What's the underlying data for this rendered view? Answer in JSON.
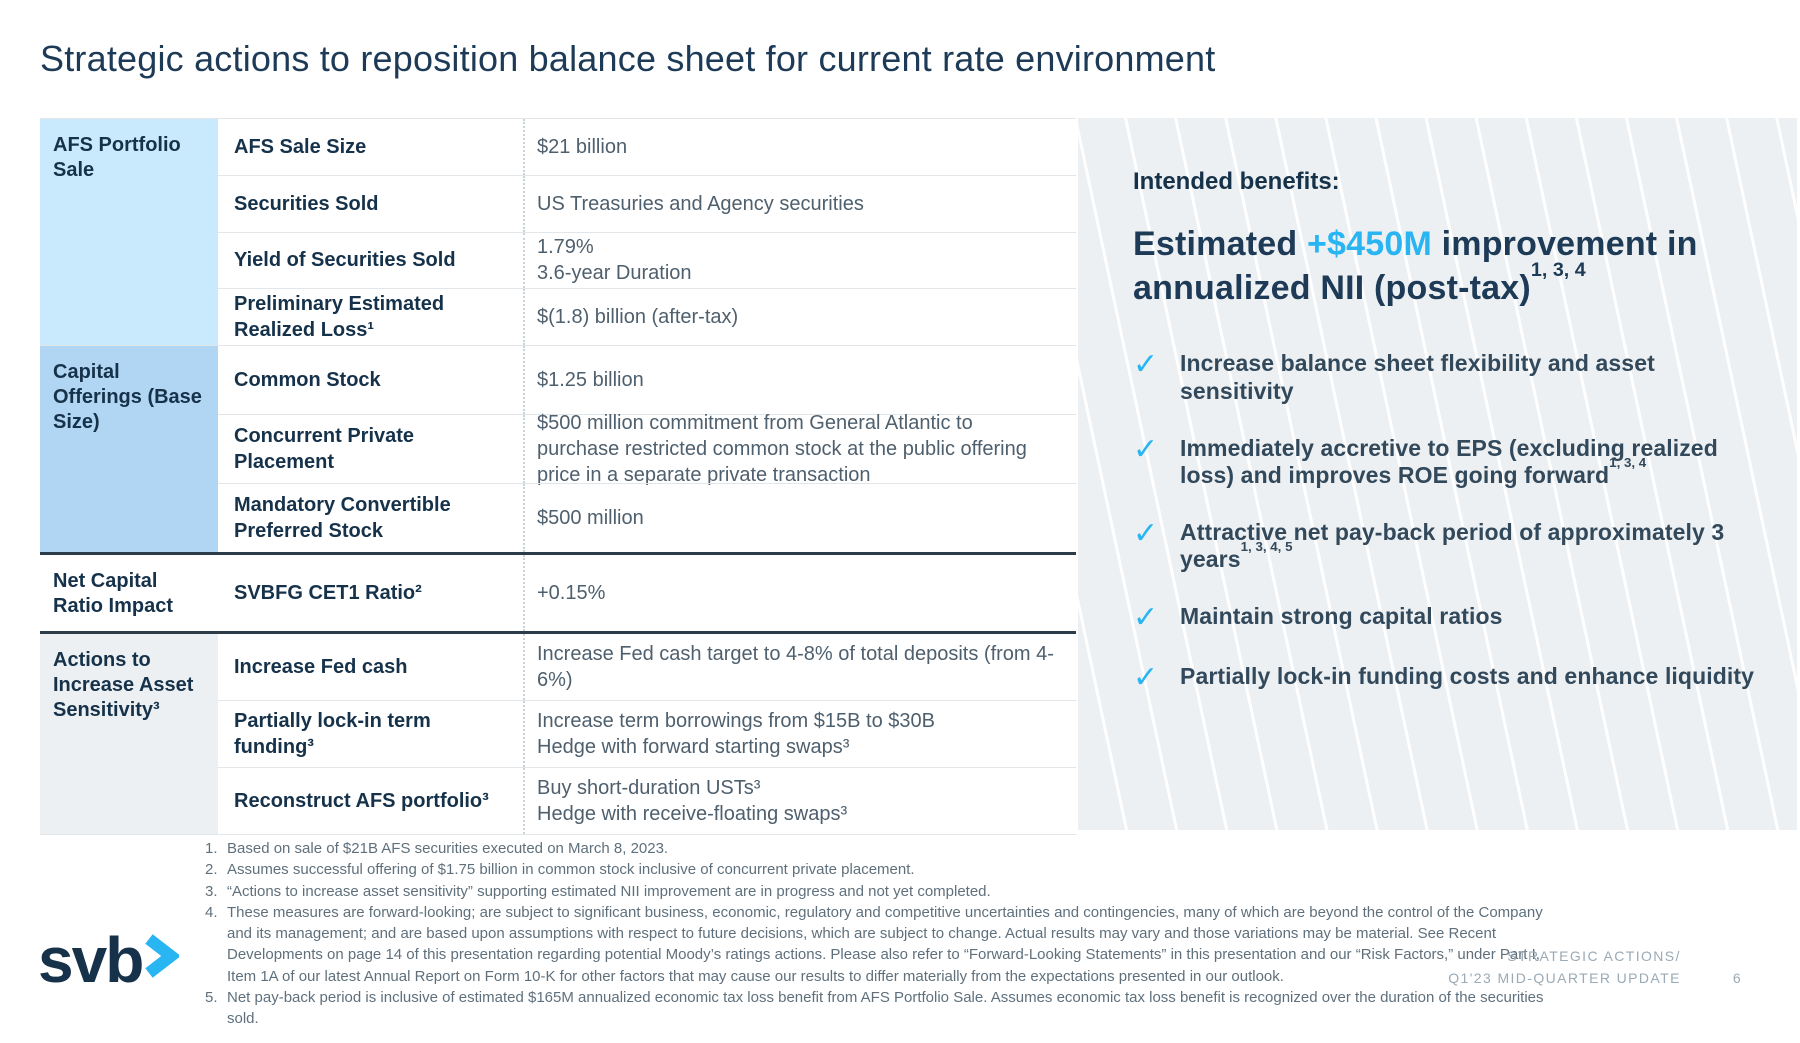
{
  "title": "Strategic actions to reposition balance sheet for current rate environment",
  "table": {
    "sections": [
      {
        "label": "AFS Portfolio Sale",
        "bg": "#c9eafc",
        "rows": [
          {
            "attr": "AFS Sale Size",
            "value": [
              "$21 billion"
            ]
          },
          {
            "attr": "Securities Sold",
            "value": [
              "US Treasuries and Agency securities"
            ]
          },
          {
            "attr": "Yield of Securities Sold",
            "value": [
              "1.79%",
              "3.6-year Duration"
            ]
          },
          {
            "attr": "Preliminary Estimated Realized Loss¹",
            "value": [
              "$(1.8) billion (after-tax)"
            ]
          }
        ]
      },
      {
        "label": "Capital Offerings (Base Size)",
        "bg": "#b1d6f4",
        "rows": [
          {
            "attr": "Common Stock",
            "value": [
              "$1.25 billion"
            ]
          },
          {
            "attr": "Concurrent Private Placement",
            "value": [
              "$500 million commitment from General Atlantic to purchase restricted common stock at the public offering price in a separate private transaction"
            ]
          },
          {
            "attr": "Mandatory Convertible Preferred Stock",
            "value": [
              "$500 million"
            ]
          }
        ]
      },
      {
        "label": "Net Capital Ratio Impact",
        "bg": "#ffffff",
        "rows": [
          {
            "attr": "SVBFG CET1 Ratio²",
            "value": [
              "+0.15%"
            ]
          }
        ]
      },
      {
        "label": "Actions to Increase Asset Sensitivity³",
        "bg": "#edf0f2",
        "rows": [
          {
            "attr": "Increase Fed cash",
            "value": [
              "Increase Fed cash target to 4-8% of total deposits (from 4-6%)"
            ]
          },
          {
            "attr": "Partially lock-in term funding³",
            "value": [
              "Increase term borrowings from $15B to $30B",
              "Hedge with forward starting swaps³"
            ]
          },
          {
            "attr": "Reconstruct AFS portfolio³",
            "value": [
              "Buy short-duration USTs³",
              "Hedge with receive-floating swaps³"
            ]
          }
        ]
      }
    ]
  },
  "benefits": {
    "intro": "Intended benefits:",
    "headline": {
      "pre": "Estimated",
      "highlight": "+$450M",
      "post": "improvement in annualized NII (post-tax)",
      "sup": "1, 3, 4"
    },
    "check_icon": "✓",
    "items": [
      {
        "text": "Increase balance sheet flexibility and asset sensitivity",
        "sup": ""
      },
      {
        "text": "Immediately accretive to EPS (excluding realized loss) and improves ROE going forward",
        "sup": "1, 3, 4"
      },
      {
        "text": "Attractive net pay-back period of approximately 3 years",
        "sup": "1, 3, 4, 5"
      },
      {
        "text": "Maintain strong capital ratios",
        "sup": ""
      },
      {
        "text": "Partially lock-in funding costs and enhance liquidity",
        "sup": ""
      }
    ]
  },
  "footnotes": [
    {
      "num": "1.",
      "text": "Based on sale of $21B AFS securities executed on March 8, 2023."
    },
    {
      "num": "2.",
      "text": "Assumes successful offering of $1.75 billion in common stock inclusive of concurrent private placement."
    },
    {
      "num": "3.",
      "text": "“Actions to increase asset sensitivity” supporting estimated NII improvement are in progress and not yet completed."
    },
    {
      "num": "4.",
      "text": "These measures are forward-looking; are subject to significant business, economic, regulatory and competitive uncertainties and contingencies, many of which are beyond the control of the Company and its management; and are based upon assumptions with respect to future decisions, which are subject to change. Actual results may vary and those variations may be material. See Recent Developments on page 14 of this presentation regarding potential Moody’s ratings actions.  Please also refer to “Forward-Looking Statements” in this presentation and our “Risk Factors,” under Part I, Item 1A of our latest Annual Report on Form 10-K for other factors that may cause our results to differ materially from the expectations presented in our outlook."
    },
    {
      "num": "5.",
      "text": "Net pay-back period is inclusive of estimated $165M annualized economic tax loss benefit from AFS Portfolio Sale.  Assumes economic tax loss benefit is recognized over the duration of the securities sold."
    }
  ],
  "footer": {
    "logo_text": "svb",
    "line1": "STRATEGIC ACTIONS/",
    "line2": "Q1'23 MID-QUARTER UPDATE",
    "page": "6"
  },
  "colors": {
    "accent": "#29b5f2",
    "navy": "#1d3a57",
    "section1_bg": "#c9eafc",
    "section2_bg": "#b1d6f4",
    "section4_bg": "#edf0f2"
  }
}
